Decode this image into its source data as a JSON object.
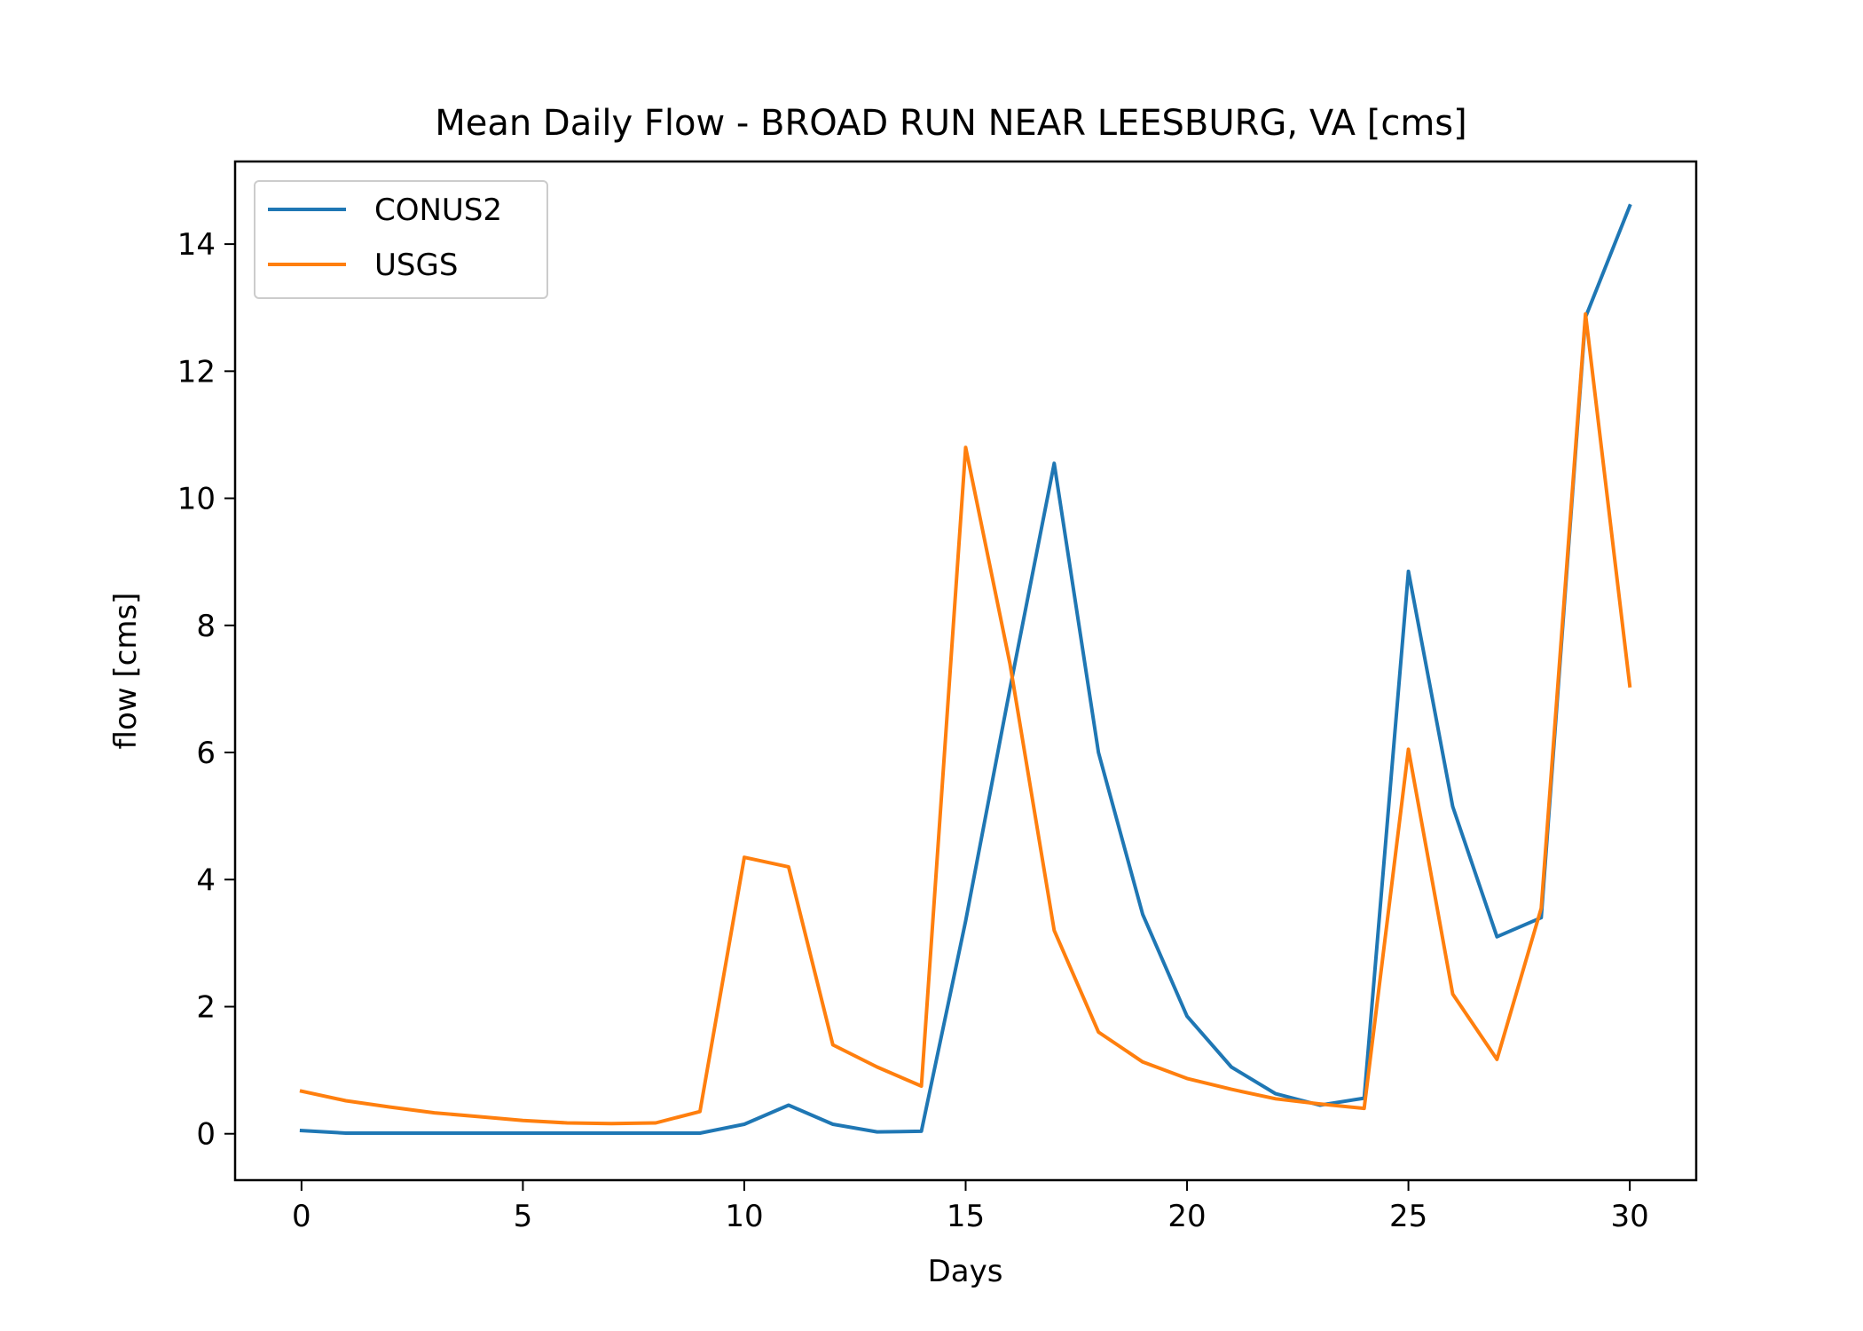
{
  "chart_data": {
    "type": "line",
    "title": "Mean Daily Flow - BROAD RUN NEAR LEESBURG, VA [cms]",
    "xlabel": "Days",
    "ylabel": "flow [cms]",
    "xlim": [
      -1.5,
      31.5
    ],
    "ylim": [
      -0.73,
      15.3
    ],
    "xticks": [
      0,
      5,
      10,
      15,
      20,
      25,
      30
    ],
    "yticks": [
      0,
      2,
      4,
      6,
      8,
      10,
      12,
      14
    ],
    "legend_position": "upper-left",
    "grid": false,
    "x": [
      0,
      1,
      2,
      3,
      4,
      5,
      6,
      7,
      8,
      9,
      10,
      11,
      12,
      13,
      14,
      15,
      16,
      17,
      18,
      19,
      20,
      21,
      22,
      23,
      24,
      25,
      26,
      27,
      28,
      29,
      30
    ],
    "series": [
      {
        "name": "CONUS2",
        "color": "#1f77b4",
        "values": [
          0.05,
          0.01,
          0.01,
          0.01,
          0.01,
          0.01,
          0.01,
          0.01,
          0.01,
          0.01,
          0.15,
          0.45,
          0.15,
          0.03,
          0.04,
          3.35,
          7.0,
          10.55,
          6.0,
          3.45,
          1.85,
          1.05,
          0.63,
          0.45,
          0.56,
          8.85,
          5.15,
          3.1,
          3.4,
          12.85,
          14.6
        ]
      },
      {
        "name": "USGS",
        "color": "#ff7f0e",
        "values": [
          0.67,
          0.52,
          0.42,
          0.33,
          0.27,
          0.21,
          0.17,
          0.16,
          0.17,
          0.35,
          4.35,
          4.2,
          1.4,
          1.05,
          0.75,
          10.8,
          7.4,
          3.2,
          1.6,
          1.13,
          0.87,
          0.7,
          0.55,
          0.47,
          0.4,
          6.05,
          2.2,
          1.17,
          3.55,
          12.9,
          7.05
        ]
      }
    ]
  }
}
